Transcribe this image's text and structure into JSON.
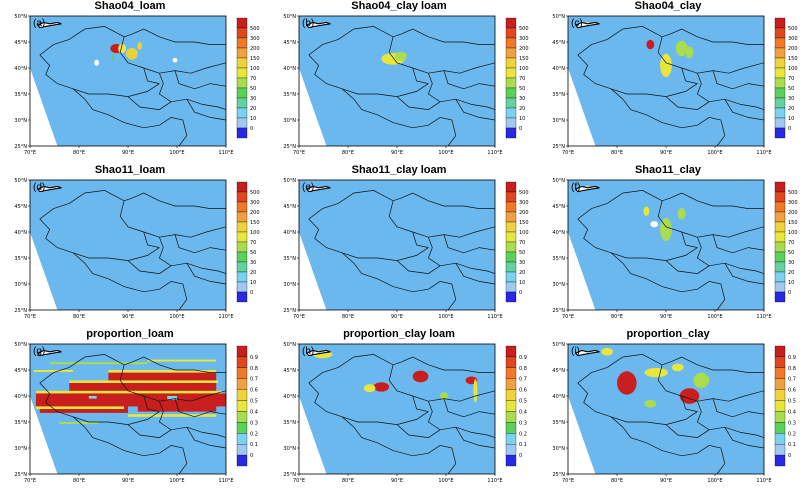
{
  "panels": [
    {
      "id": "a",
      "label": "(a)",
      "title": "Shao04_loam",
      "scale": "abs",
      "patches": [
        [
          0.44,
          0.25,
          0.03,
          0.012,
          "#c81e1e"
        ],
        [
          0.47,
          0.25,
          0.02,
          0.012,
          "#e8e850"
        ],
        [
          0.52,
          0.29,
          0.03,
          0.015,
          "#e6d23c"
        ],
        [
          0.56,
          0.23,
          0.012,
          0.01,
          "#e6d23c"
        ],
        [
          0.34,
          0.36,
          0.012,
          0.008,
          "#ffffff"
        ],
        [
          0.42,
          0.32,
          0.006,
          0.006,
          "#5ad25a"
        ],
        [
          0.74,
          0.34,
          0.012,
          0.006,
          "#ffffff"
        ]
      ]
    },
    {
      "id": "b",
      "label": "(b)",
      "title": "Shao04_clay loam",
      "scale": "abs",
      "patches": [
        [
          0.48,
          0.33,
          0.06,
          0.015,
          "#e6e63c"
        ],
        [
          0.52,
          0.31,
          0.03,
          0.012,
          "#aadc50"
        ]
      ]
    },
    {
      "id": "c",
      "label": "(c)",
      "title": "Shao04_clay",
      "scale": "abs",
      "patches": [
        [
          0.42,
          0.22,
          0.02,
          0.012,
          "#c81e1e"
        ],
        [
          0.58,
          0.25,
          0.03,
          0.02,
          "#aadc50"
        ],
        [
          0.5,
          0.38,
          0.03,
          0.03,
          "#e6e63c"
        ],
        [
          0.62,
          0.28,
          0.02,
          0.015,
          "#aadc50"
        ],
        [
          0.1,
          0.06,
          0.01,
          0.005,
          "#e6e63c"
        ]
      ]
    },
    {
      "id": "d",
      "label": "(d)",
      "title": "Shao11_loam",
      "scale": "abs",
      "patches": []
    },
    {
      "id": "e",
      "label": "(e)",
      "title": "Shao11_clay loam",
      "scale": "abs",
      "patches": []
    },
    {
      "id": "f",
      "label": "(f)",
      "title": "Shao11_clay",
      "scale": "abs",
      "patches": [
        [
          0.4,
          0.24,
          0.015,
          0.012,
          "#e6e63c"
        ],
        [
          0.58,
          0.26,
          0.02,
          0.015,
          "#aadc50"
        ],
        [
          0.5,
          0.38,
          0.03,
          0.03,
          "#aadc50"
        ],
        [
          0.44,
          0.34,
          0.02,
          0.008,
          "#ffffff"
        ],
        [
          0.1,
          0.06,
          0.012,
          0.005,
          "#e6e63c"
        ]
      ]
    },
    {
      "id": "g",
      "label": "(g)",
      "title": "proportion_loam",
      "scale": "prop",
      "dense": true,
      "patches": []
    },
    {
      "id": "h",
      "label": "(h)",
      "title": "proportion_clay loam",
      "scale": "prop",
      "patches": [
        [
          0.12,
          0.08,
          0.05,
          0.01,
          "#e6e63c"
        ],
        [
          0.42,
          0.33,
          0.04,
          0.012,
          "#c81e1e"
        ],
        [
          0.36,
          0.34,
          0.03,
          0.01,
          "#e6e63c"
        ],
        [
          0.62,
          0.25,
          0.04,
          0.015,
          "#c81e1e"
        ],
        [
          0.88,
          0.28,
          0.03,
          0.01,
          "#c81e1e"
        ],
        [
          0.9,
          0.36,
          0.01,
          0.03,
          "#e6e63c"
        ],
        [
          0.74,
          0.4,
          0.02,
          0.01,
          "#aadc50"
        ]
      ]
    },
    {
      "id": "i",
      "label": "(i)",
      "title": "proportion_clay",
      "scale": "prop",
      "patches": [
        [
          0.3,
          0.3,
          0.05,
          0.03,
          "#c81e1e"
        ],
        [
          0.45,
          0.22,
          0.06,
          0.012,
          "#e6e63c"
        ],
        [
          0.62,
          0.4,
          0.05,
          0.02,
          "#c81e1e"
        ],
        [
          0.68,
          0.28,
          0.04,
          0.02,
          "#aadc50"
        ],
        [
          0.2,
          0.06,
          0.03,
          0.01,
          "#e6e63c"
        ],
        [
          0.42,
          0.46,
          0.03,
          0.01,
          "#aadc50"
        ],
        [
          0.56,
          0.18,
          0.03,
          0.01,
          "#e6e63c"
        ]
      ]
    }
  ],
  "axes": {
    "lon_labels": [
      "70°E",
      "80°E",
      "90°E",
      "100°E",
      "110°E"
    ],
    "lat_labels": [
      "50°N",
      "45°N",
      "40°N",
      "35°N",
      "30°N",
      "25°N"
    ]
  },
  "colorbars": {
    "abs": {
      "labels": [
        "500",
        "300",
        "200",
        "150",
        "100",
        "70",
        "50",
        "30",
        "20",
        "10",
        "0"
      ]
    },
    "prop": {
      "labels": [
        "0.9",
        "0.8",
        "0.7",
        "0.6",
        "0.5",
        "0.4",
        "0.3",
        "0.2",
        "0.1",
        "0"
      ]
    }
  },
  "colors": {
    "abs": [
      "#c81e1e",
      "#e0471e",
      "#f07828",
      "#f0a040",
      "#f0d23c",
      "#e6e63c",
      "#aadc50",
      "#5ad25a",
      "#64d2a0",
      "#78d2f0",
      "#a0c8f0",
      "#2828e6"
    ],
    "prop": [
      "#c81e1e",
      "#e0471e",
      "#f07828",
      "#f0a040",
      "#f0d23c",
      "#e6e63c",
      "#aadc50",
      "#5ad25a",
      "#78d2f0",
      "#a0c8f0",
      "#2828e6"
    ],
    "background": "#6ab8ee"
  }
}
